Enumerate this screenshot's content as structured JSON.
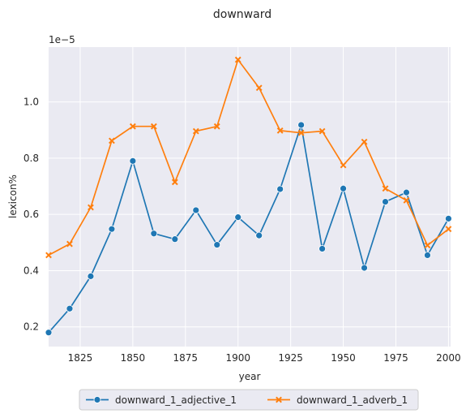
{
  "chart_data": {
    "type": "line",
    "title": "downward",
    "xlabel": "year",
    "ylabel": "lexicon%",
    "y_offset_label": "1e−5",
    "y_scale_factor": 1e-05,
    "xlim": [
      1810,
      2001
    ],
    "ylim": [
      0.13,
      1.195
    ],
    "x_ticks": [
      1825,
      1850,
      1875,
      1900,
      1925,
      1950,
      1975,
      2000
    ],
    "y_ticks": [
      0.2,
      0.4,
      0.6,
      0.8,
      1.0
    ],
    "x_tick_labels": [
      "1825",
      "1850",
      "1875",
      "1900",
      "1925",
      "1950",
      "1975",
      "2000"
    ],
    "y_tick_labels": [
      "0.2",
      "0.4",
      "0.6",
      "0.8",
      "1.0"
    ],
    "grid": true,
    "legend_position": "bottom-center",
    "x": [
      1810,
      1820,
      1830,
      1840,
      1850,
      1860,
      1870,
      1880,
      1890,
      1900,
      1910,
      1920,
      1930,
      1940,
      1950,
      1960,
      1970,
      1980,
      1990,
      2000
    ],
    "series": [
      {
        "name": "downward_1_adjective_1",
        "color": "#1f77b4",
        "marker": "circle",
        "values": [
          0.18,
          0.265,
          0.38,
          0.548,
          0.79,
          0.532,
          0.512,
          0.615,
          0.492,
          0.59,
          0.525,
          0.69,
          0.918,
          0.478,
          0.692,
          0.41,
          0.645,
          0.678,
          0.455,
          0.585
        ]
      },
      {
        "name": "downward_1_adverb_1",
        "color": "#ff7f0e",
        "marker": "x",
        "values": [
          0.455,
          0.495,
          0.625,
          0.862,
          0.913,
          0.913,
          0.715,
          0.896,
          0.913,
          1.15,
          1.05,
          0.898,
          0.89,
          0.896,
          0.775,
          0.858,
          0.692,
          0.65,
          0.49,
          0.548
        ]
      }
    ]
  },
  "colors": {
    "plot_background": "#eaeaf2",
    "grid": "#ffffff",
    "text": "#262626"
  }
}
